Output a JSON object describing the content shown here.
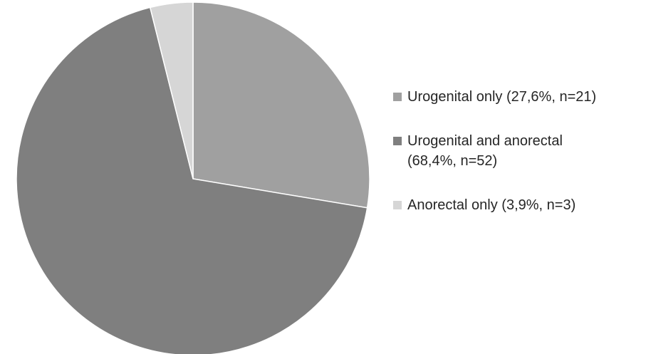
{
  "chart_data": {
    "type": "pie",
    "title": "",
    "start_angle_deg": 0,
    "direction": "clockwise",
    "slices": [
      {
        "label": "Urogenital only (27,6%, n=21)",
        "value": 27.6,
        "n": 21,
        "color": "#a0a0a0"
      },
      {
        "label": "Urogenital and anorectal\n(68,4%, n=52)",
        "value": 68.4,
        "n": 52,
        "color": "#7f7f7f"
      },
      {
        "label": "Anorectal only (3,9%, n=3)",
        "value": 3.9,
        "n": 3,
        "color": "#d6d6d6"
      }
    ],
    "legend_position": "right",
    "slice_border_color": "#ffffff"
  }
}
